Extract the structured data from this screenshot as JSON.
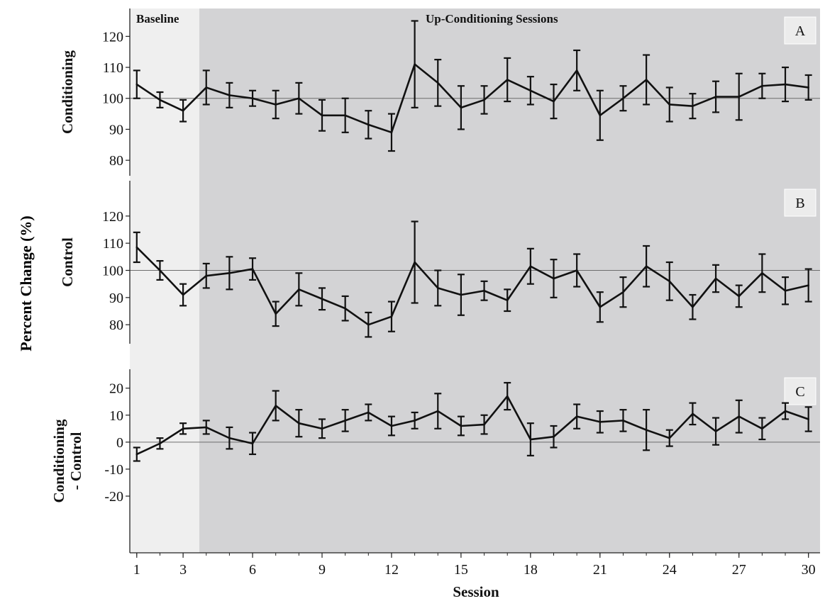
{
  "chart_data": {
    "type": "line",
    "ylabel": "Percent Change (%)",
    "xlabel": "Session",
    "x": [
      1,
      2,
      3,
      4,
      5,
      6,
      7,
      8,
      9,
      10,
      11,
      12,
      13,
      14,
      15,
      16,
      17,
      18,
      19,
      20,
      21,
      22,
      23,
      24,
      25,
      26,
      27,
      28,
      29,
      30
    ],
    "x_ticks": [
      1,
      3,
      6,
      9,
      12,
      15,
      18,
      21,
      24,
      27,
      30
    ],
    "xlim": [
      0.7,
      30.5
    ],
    "regions": [
      {
        "label": "Baseline",
        "x_start": 0.7,
        "x_end": 3.7,
        "color": "#efefef"
      },
      {
        "label": "Up-Conditioning Sessions",
        "x_start": 3.7,
        "x_end": 30.5,
        "color": "#d3d3d5"
      }
    ],
    "panels": [
      {
        "panel_label": "A",
        "ylabel": "Conditioning",
        "yticks": [
          80,
          90,
          100,
          110,
          120
        ],
        "ylim": [
          75,
          129
        ],
        "reference": 100,
        "values": [
          104.5,
          99.5,
          96,
          103.5,
          101,
          100,
          98,
          100,
          94.5,
          94.5,
          91.5,
          89,
          111,
          105,
          97,
          99.5,
          106,
          102.5,
          99,
          109,
          94.5,
          100,
          106,
          98,
          97.5,
          100.5,
          100.5,
          104,
          104.5,
          103.5
        ],
        "errors": [
          4.5,
          2.5,
          3.5,
          5.5,
          4,
          2.5,
          4.5,
          5,
          5,
          5.5,
          4.5,
          6,
          14,
          7.5,
          7,
          4.5,
          7,
          4.5,
          5.5,
          6.5,
          8,
          4,
          8,
          5.5,
          4,
          5,
          7.5,
          4,
          5.5,
          4
        ]
      },
      {
        "panel_label": "B",
        "ylabel": "Control",
        "yticks": [
          80,
          90,
          100,
          110,
          120
        ],
        "ylim": [
          73,
          133
        ],
        "reference": 100,
        "values": [
          108.5,
          100,
          91,
          98,
          99,
          100.5,
          84,
          93,
          89.5,
          86,
          80,
          83,
          103,
          93.5,
          91,
          92.5,
          89,
          101.5,
          97,
          100,
          86.5,
          92,
          101.5,
          96,
          86.5,
          97,
          90.5,
          99,
          92.5,
          94.5
        ],
        "errors": [
          5.5,
          3.5,
          4,
          4.5,
          6,
          4,
          4.5,
          6,
          4,
          4.5,
          4.5,
          5.5,
          15,
          6.5,
          7.5,
          3.5,
          4,
          6.5,
          7,
          6,
          5.5,
          5.5,
          7.5,
          7,
          4.5,
          5,
          4,
          7,
          5,
          6
        ]
      },
      {
        "panel_label": "C",
        "ylabel": "Conditioning\n- Control",
        "yticks": [
          -20,
          -10,
          0,
          10,
          20
        ],
        "ylim": [
          -41,
          27
        ],
        "reference": 0,
        "values": [
          -4.5,
          -0.5,
          5,
          5.5,
          1.5,
          -0.5,
          13.5,
          7,
          5,
          8,
          11,
          6,
          8,
          11.5,
          6,
          6.5,
          17,
          1,
          2,
          9.5,
          7.5,
          8,
          4.5,
          1.5,
          10.5,
          4,
          9.5,
          5,
          11.5,
          8.5
        ],
        "errors": [
          2.5,
          2,
          2,
          2.5,
          4,
          4,
          5.5,
          5,
          3.5,
          4,
          3,
          3.5,
          3,
          6.5,
          3.5,
          3.5,
          5,
          6,
          4,
          4.5,
          4,
          4,
          7.5,
          3,
          4,
          5,
          6,
          4,
          3,
          4.5
        ]
      }
    ]
  }
}
